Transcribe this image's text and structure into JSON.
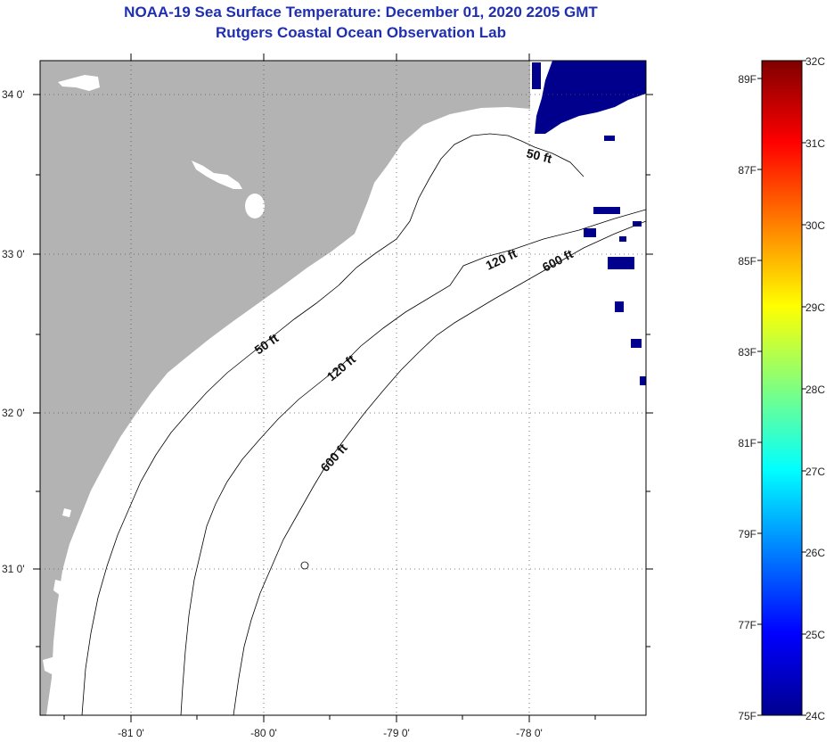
{
  "header": {
    "title": "NOAA-19 Sea Surface Temperature:  December 01, 2020 2205 GMT",
    "subtitle": "Rutgers Coastal Ocean Observation Lab"
  },
  "map": {
    "lat_labels": [
      "34 0'",
      "33 0'",
      "32 0'",
      "31 0'"
    ],
    "lon_labels": [
      "-81 0'",
      "-80 0'",
      "-79 0'",
      "-78 0'"
    ],
    "contours": [
      "50 ft",
      "50 ft",
      "120 ft",
      "120 ft",
      "600 ft",
      "600 ft"
    ],
    "colors": {
      "land": "#b3b3b3",
      "ocean": "#ffffff",
      "sst_patch": "#00008c"
    }
  },
  "colorbar": {
    "celsius": [
      "32C",
      "31C",
      "30C",
      "29C",
      "28C",
      "27C",
      "26C",
      "25C",
      "24C"
    ],
    "fahrenheit": [
      "89F",
      "87F",
      "85F",
      "83F",
      "81F",
      "79F",
      "77F",
      "75F"
    ],
    "range_c": [
      24,
      32
    ]
  }
}
